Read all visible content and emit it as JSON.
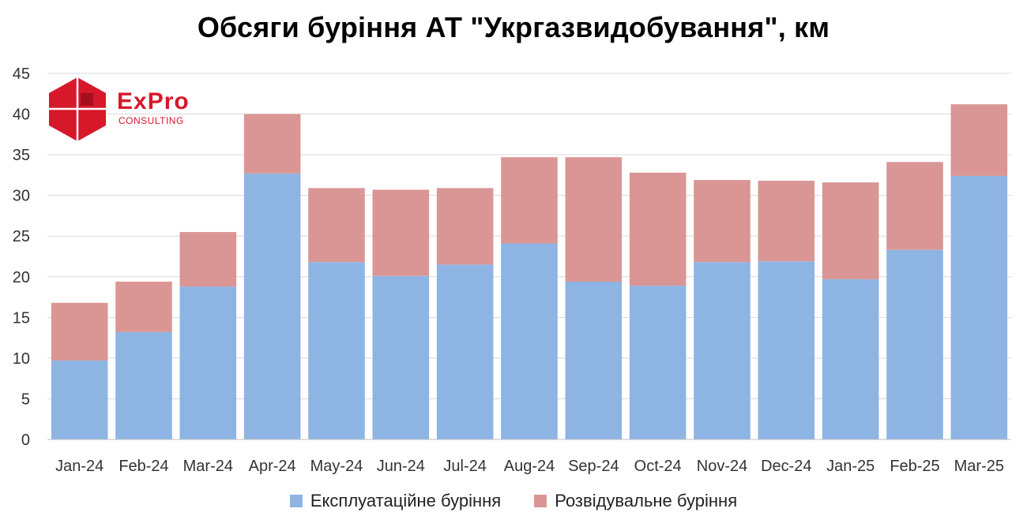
{
  "chart_data": {
    "type": "bar",
    "stacked": true,
    "title": "Обсяги буріння АТ \"Укргазвидобування\", км",
    "categories": [
      "Jan-24",
      "Feb-24",
      "Mar-24",
      "Apr-24",
      "May-24",
      "Jun-24",
      "Jul-24",
      "Aug-24",
      "Sep-24",
      "Oct-24",
      "Nov-24",
      "Dec-24",
      "Jan-25",
      "Feb-25",
      "Mar-25"
    ],
    "series": [
      {
        "name": "Експлуатаційне буріння",
        "color": "#8eb4e3",
        "values": [
          9.7,
          13.2,
          18.8,
          32.7,
          21.8,
          20.1,
          21.5,
          24.1,
          19.4,
          18.9,
          21.8,
          21.9,
          19.7,
          23.3,
          32.4
        ]
      },
      {
        "name": "Розвідувальне буріння",
        "color": "#d99694",
        "values": [
          7.1,
          6.2,
          6.7,
          7.3,
          9.1,
          10.6,
          9.4,
          10.6,
          15.3,
          13.9,
          10.1,
          9.9,
          11.9,
          10.8,
          8.8
        ]
      }
    ],
    "ylim": [
      0,
      45
    ],
    "yticks": [
      0,
      5,
      10,
      15,
      20,
      25,
      30,
      35,
      40,
      45
    ],
    "grid": true,
    "legend_position": "bottom"
  },
  "logo": {
    "text": "ExPro",
    "subtext": "CONSULTING",
    "color": "#d7182a"
  }
}
